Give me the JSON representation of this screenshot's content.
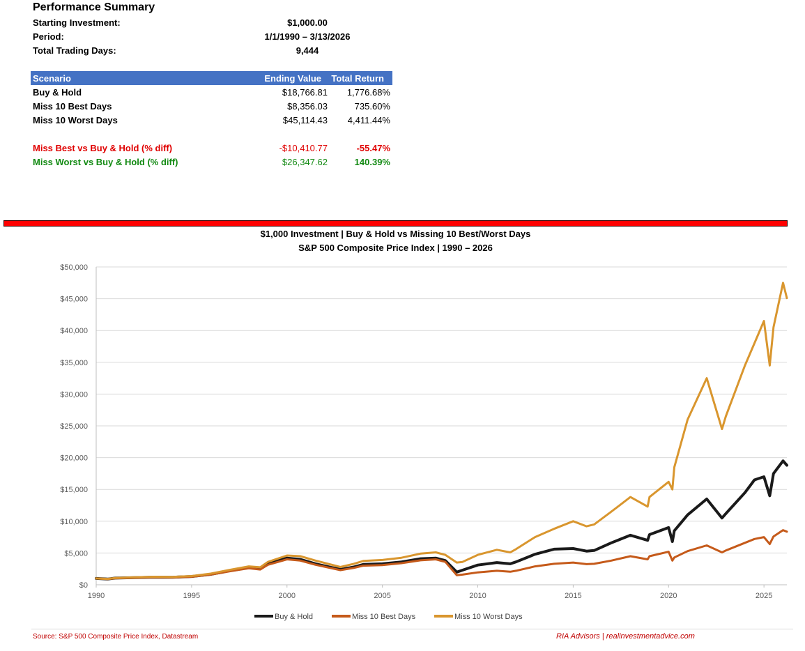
{
  "summary": {
    "title": "Performance Summary",
    "rows": [
      {
        "label": "Starting Investment:",
        "value": "$1,000.00"
      },
      {
        "label": "Period:",
        "value": "1/1/1990 – 3/13/2026"
      },
      {
        "label": "Total Trading Days:",
        "value": "9,444"
      }
    ]
  },
  "table": {
    "headers": [
      "Scenario",
      "Ending Value",
      "Total Return"
    ],
    "rows": [
      {
        "scenario": "Buy & Hold",
        "ending": "$18,766.81",
        "ret": "1,776.68%"
      },
      {
        "scenario": "Miss 10 Best Days",
        "ending": "$8,356.03",
        "ret": "735.60%"
      },
      {
        "scenario": "Miss 10 Worst Days",
        "ending": "$45,114.43",
        "ret": "4,411.44%"
      }
    ],
    "diffs": [
      {
        "label": "Miss Best vs Buy & Hold (% diff)",
        "value": "-$10,410.77",
        "pct": "-55.47%",
        "color": "#e00000"
      },
      {
        "label": "Miss Worst vs Buy & Hold (% diff)",
        "value": "$26,347.62",
        "pct": "140.39%",
        "color": "#138a13"
      }
    ]
  },
  "colors": {
    "header_fill": "#4472c4",
    "red_bar": "#ff0000",
    "source": "#c00000",
    "grid": "#d9d9d9"
  },
  "footer": {
    "source": "Source: S&P 500 Composite Price Index, Datastream",
    "credit": "RIA Advisors  |  realinvestmentadvice.com"
  },
  "chart_data": {
    "type": "line",
    "title": "$1,000 Investment  |  Buy & Hold vs Missing 10 Best/Worst Days",
    "subtitle": "S&P 500 Composite Price Index  |  1990 – 2026",
    "xlabel": "",
    "ylabel": "",
    "xlim": [
      1990,
      2026.2
    ],
    "ylim": [
      0,
      50000
    ],
    "yticks": [
      0,
      5000,
      10000,
      15000,
      20000,
      25000,
      30000,
      35000,
      40000,
      45000,
      50000
    ],
    "ytick_labels": [
      "$0",
      "$5,000",
      "$10,000",
      "$15,000",
      "$20,000",
      "$25,000",
      "$30,000",
      "$35,000",
      "$40,000",
      "$45,000",
      "$50,000"
    ],
    "xticks": [
      1990,
      1995,
      2000,
      2005,
      2010,
      2015,
      2020,
      2025
    ],
    "xtick_labels": [
      "1990",
      "1995",
      "2000",
      "2005",
      "2010",
      "2015",
      "2020",
      "2025"
    ],
    "grid": true,
    "legend_position": "bottom",
    "x": [
      1990.0,
      1990.6,
      1991.0,
      1992.0,
      1993.0,
      1994.0,
      1995.0,
      1996.0,
      1997.0,
      1998.0,
      1998.6,
      1999.0,
      2000.0,
      2000.7,
      2001.5,
      2002.8,
      2003.5,
      2004.0,
      2005.0,
      2006.0,
      2007.0,
      2007.8,
      2008.3,
      2008.9,
      2009.2,
      2010.0,
      2011.0,
      2011.7,
      2012.0,
      2013.0,
      2014.0,
      2015.0,
      2015.7,
      2016.1,
      2017.0,
      2018.0,
      2018.9,
      2019.0,
      2020.0,
      2020.2,
      2020.3,
      2021.0,
      2022.0,
      2022.8,
      2023.0,
      2024.0,
      2024.5,
      2025.0,
      2025.3,
      2025.5,
      2026.0,
      2026.2
    ],
    "series": [
      {
        "name": "Buy & Hold",
        "color": "#1a1a1a",
        "width": 4,
        "values": [
          1000,
          900,
          1050,
          1120,
          1200,
          1180,
          1300,
          1650,
          2200,
          2700,
          2500,
          3300,
          4200,
          4000,
          3300,
          2400,
          2800,
          3200,
          3300,
          3600,
          4100,
          4200,
          3800,
          2000,
          2300,
          3100,
          3500,
          3300,
          3600,
          4800,
          5600,
          5700,
          5300,
          5400,
          6600,
          7800,
          7000,
          7900,
          9000,
          6800,
          8500,
          11000,
          13500,
          10500,
          11200,
          14500,
          16500,
          17000,
          14000,
          17500,
          19500,
          18800
        ]
      },
      {
        "name": "Miss 10 Best Days",
        "color": "#c55a1a",
        "width": 3,
        "values": [
          1000,
          900,
          1030,
          1100,
          1170,
          1150,
          1260,
          1600,
          2120,
          2600,
          2400,
          3150,
          4000,
          3800,
          3150,
          2300,
          2650,
          3000,
          3100,
          3400,
          3850,
          4000,
          3600,
          1500,
          1600,
          1950,
          2200,
          2050,
          2200,
          2900,
          3300,
          3500,
          3250,
          3300,
          3800,
          4500,
          4000,
          4500,
          5200,
          3800,
          4300,
          5300,
          6200,
          5100,
          5400,
          6600,
          7200,
          7500,
          6400,
          7600,
          8600,
          8350
        ]
      },
      {
        "name": "Miss 10 Worst Days",
        "color": "#d9962e",
        "width": 3,
        "values": [
          1000,
          920,
          1080,
          1170,
          1260,
          1240,
          1370,
          1750,
          2350,
          2900,
          2750,
          3600,
          4600,
          4500,
          3800,
          2800,
          3300,
          3750,
          3900,
          4250,
          4900,
          5100,
          4700,
          3500,
          3600,
          4700,
          5500,
          5100,
          5600,
          7500,
          8800,
          10000,
          9200,
          9500,
          11500,
          13800,
          12300,
          13800,
          16200,
          15000,
          18500,
          26000,
          32500,
          24500,
          26500,
          34500,
          38000,
          41500,
          34500,
          40500,
          47500,
          45100
        ]
      }
    ]
  }
}
